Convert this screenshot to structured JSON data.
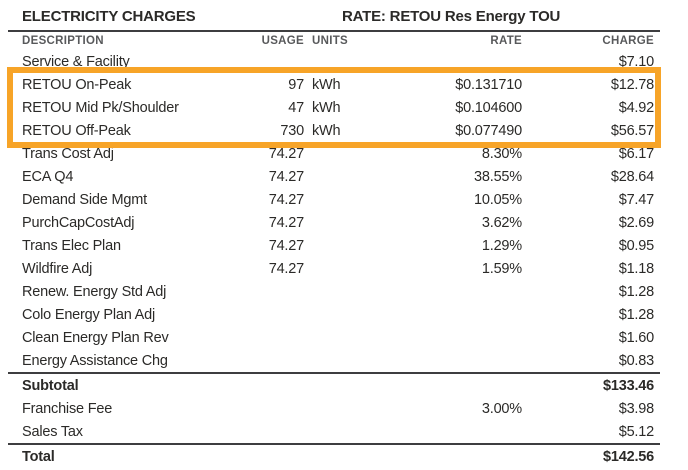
{
  "header": {
    "title": "ELECTRICITY CHARGES",
    "rate_label": "RATE: RETOU Res Energy TOU"
  },
  "columns": {
    "description": "DESCRIPTION",
    "usage": "USAGE",
    "units": "UNITS",
    "rate": "RATE",
    "charge": "CHARGE"
  },
  "highlight": {
    "color": "#F7A428",
    "highlighted_rows": [
      "RETOU On-Peak",
      "RETOU Mid Pk/Shoulder",
      "RETOU Off-Peak"
    ]
  },
  "rows": [
    {
      "description": "Service & Facility",
      "usage": "",
      "units": "",
      "rate": "",
      "charge": "$7.10"
    },
    {
      "description": "RETOU On-Peak",
      "usage": "97",
      "units": "kWh",
      "rate": "$0.131710",
      "charge": "$12.78",
      "highlighted": true
    },
    {
      "description": "RETOU Mid Pk/Shoulder",
      "usage": "47",
      "units": "kWh",
      "rate": "$0.104600",
      "charge": "$4.92",
      "highlighted": true
    },
    {
      "description": "RETOU Off-Peak",
      "usage": "730",
      "units": "kWh",
      "rate": "$0.077490",
      "charge": "$56.57",
      "highlighted": true
    },
    {
      "description": "Trans Cost Adj",
      "usage": "74.27",
      "units": "",
      "rate": "8.30%",
      "charge": "$6.17"
    },
    {
      "description": "ECA Q4",
      "usage": "74.27",
      "units": "",
      "rate": "38.55%",
      "charge": "$28.64"
    },
    {
      "description": "Demand Side Mgmt",
      "usage": "74.27",
      "units": "",
      "rate": "10.05%",
      "charge": "$7.47"
    },
    {
      "description": "PurchCapCostAdj",
      "usage": "74.27",
      "units": "",
      "rate": "3.62%",
      "charge": "$2.69"
    },
    {
      "description": "Trans Elec Plan",
      "usage": "74.27",
      "units": "",
      "rate": "1.29%",
      "charge": "$0.95"
    },
    {
      "description": "Wildfire Adj",
      "usage": "74.27",
      "units": "",
      "rate": "1.59%",
      "charge": "$1.18"
    },
    {
      "description": "Renew. Energy Std Adj",
      "usage": "",
      "units": "",
      "rate": "",
      "charge": "$1.28"
    },
    {
      "description": "Colo Energy Plan Adj",
      "usage": "",
      "units": "",
      "rate": "",
      "charge": "$1.28"
    },
    {
      "description": "Clean Energy Plan Rev",
      "usage": "",
      "units": "",
      "rate": "",
      "charge": "$1.60"
    },
    {
      "description": "Energy Assistance Chg",
      "usage": "",
      "units": "",
      "rate": "",
      "charge": "$0.83"
    },
    {
      "description": "Subtotal",
      "usage": "",
      "units": "",
      "rate": "",
      "charge": "$133.46",
      "bold": true,
      "rule_above": true
    },
    {
      "description": "Franchise Fee",
      "usage": "",
      "units": "",
      "rate": "3.00%",
      "charge": "$3.98"
    },
    {
      "description": "Sales Tax",
      "usage": "",
      "units": "",
      "rate": "",
      "charge": "$5.12"
    },
    {
      "description": "Total",
      "usage": "",
      "units": "",
      "rate": "",
      "charge": "$142.56",
      "bold": true,
      "rule_above": true
    }
  ]
}
